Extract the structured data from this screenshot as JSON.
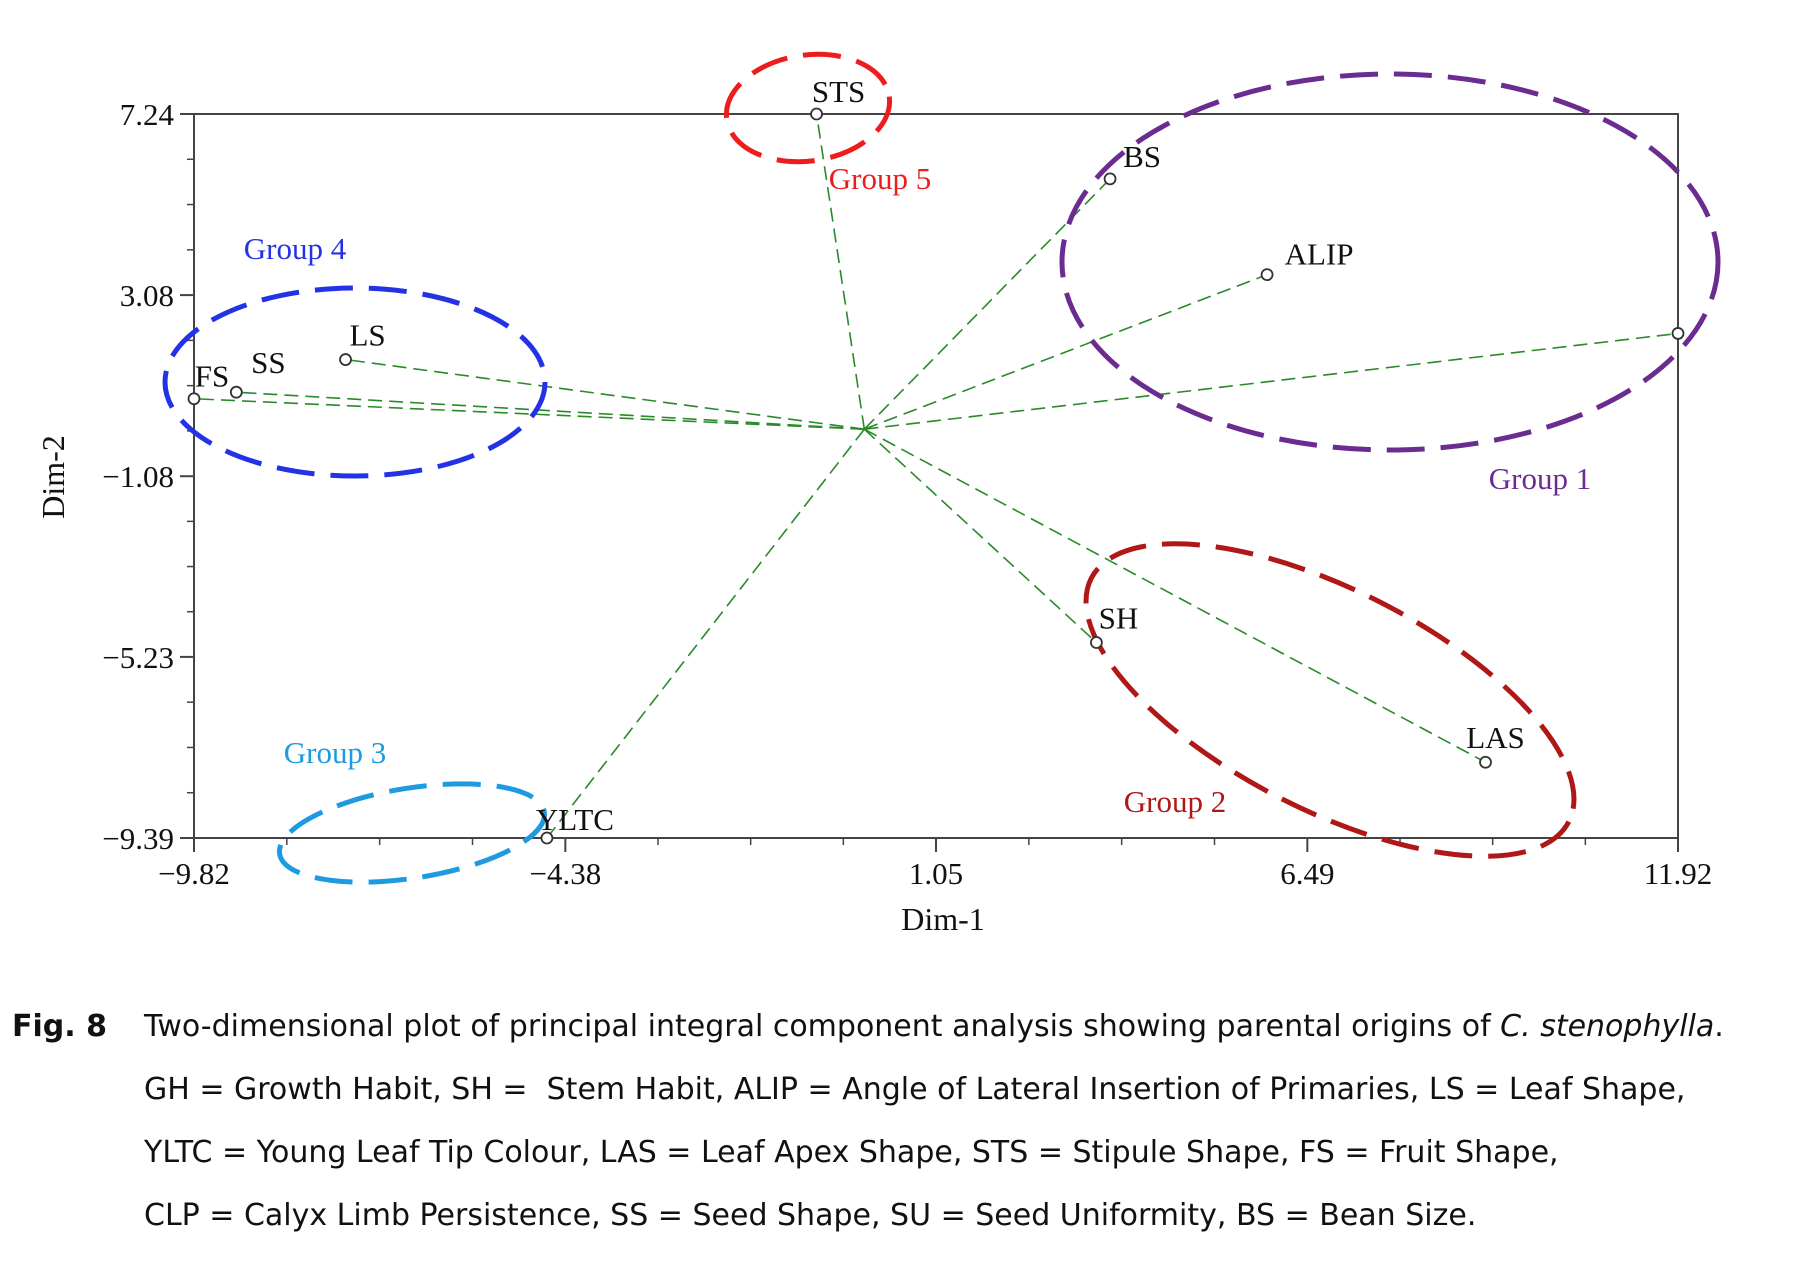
{
  "chart_data": {
    "type": "scatter",
    "title": "",
    "xlabel": "Dim-1",
    "ylabel": "Dim-2",
    "xlim": [
      -9.82,
      11.92
    ],
    "ylim": [
      -9.39,
      7.24
    ],
    "x_ticks": [
      "−9.82",
      "−4.38",
      "1.05",
      "6.49",
      "11.92"
    ],
    "y_ticks": [
      "7.24",
      "3.08",
      "−1.08",
      "−5.23",
      "−9.39"
    ],
    "x_tick_values": [
      -9.82,
      -4.38,
      1.05,
      6.49,
      11.92
    ],
    "y_tick_values": [
      7.24,
      3.08,
      -1.08,
      -5.23,
      -9.39
    ],
    "origin": [
      0.0,
      0.0
    ],
    "points": [
      {
        "label": "STS",
        "x": -0.7,
        "y": 7.24
      },
      {
        "label": "BS",
        "x": 3.6,
        "y": 5.75
      },
      {
        "label": "ALIP",
        "x": 5.9,
        "y": 3.55
      },
      {
        "label": "",
        "x": 11.92,
        "y": 2.2
      },
      {
        "label": "LS",
        "x": -7.6,
        "y": 1.6
      },
      {
        "label": "SS",
        "x": -9.2,
        "y": 0.85
      },
      {
        "label": "FS",
        "x": -9.82,
        "y": 0.7
      },
      {
        "label": "SH",
        "x": 3.4,
        "y": -4.9
      },
      {
        "label": "LAS",
        "x": 9.1,
        "y": -7.65
      },
      {
        "label": "YLTC",
        "x": -4.65,
        "y": -9.39
      }
    ],
    "groups": [
      {
        "name": "Group 1",
        "color": "#6a2c91",
        "members": [
          "BS",
          "ALIP",
          ""
        ]
      },
      {
        "name": "Group 2",
        "color": "#b01818",
        "members": [
          "SH",
          "LAS"
        ]
      },
      {
        "name": "Group 3",
        "color": "#1e9be0",
        "members": [
          "YLTC"
        ]
      },
      {
        "name": "Group 4",
        "color": "#2432e6",
        "members": [
          "LS",
          "SS",
          "FS"
        ]
      },
      {
        "name": "Group 5",
        "color": "#ee1d1d",
        "members": [
          "STS"
        ]
      }
    ],
    "line_color": "#2a8a2a",
    "grid": false
  },
  "caption": {
    "label": "Fig. 8",
    "line1_pre": "Two-dimensional plot of principal integral component analysis showing parental origins of ",
    "line1_species": "C. stenophylla",
    "line1_post": ".",
    "line2": "GH = Growth Habit, SH =  Stem Habit, ALIP = Angle of Lateral Insertion of Primaries, LS = Leaf Shape,",
    "line3": "YLTC = Young Leaf Tip Colour, LAS = Leaf Apex Shape, STS = Stipule Shape, FS = Fruit Shape,",
    "line4": "CLP = Calyx Limb Persistence, SS = Seed Shape, SU = Seed Uniformity, BS = Bean Size."
  }
}
